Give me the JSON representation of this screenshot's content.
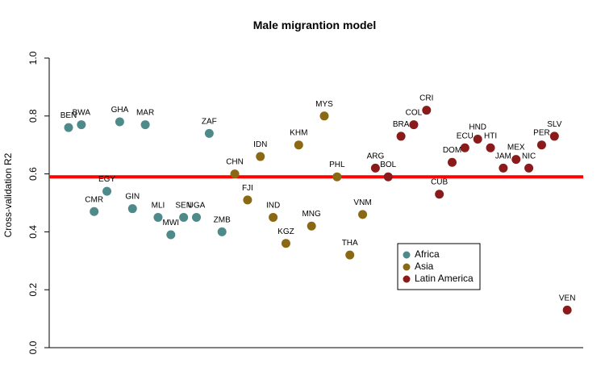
{
  "chart_data": {
    "type": "scatter",
    "title": "Male migrantion model",
    "ylabel": "Cross-validation R2",
    "xlabel": "",
    "ylim": [
      0.0,
      1.0
    ],
    "yticks": [
      "0.0",
      "0.2",
      "0.4",
      "0.6",
      "0.8",
      "1.0"
    ],
    "reference_line": {
      "y": 0.59,
      "color": "#ff0000"
    },
    "legend": {
      "position": "bottom-right",
      "entries": [
        {
          "name": "Africa",
          "color": "#4f8a8b"
        },
        {
          "name": "Asia",
          "color": "#8b6914"
        },
        {
          "name": "Latin America",
          "color": "#8b1a1a"
        }
      ]
    },
    "points": [
      {
        "label": "BEN",
        "x": 1,
        "y": 0.76,
        "group": "Africa"
      },
      {
        "label": "BWA",
        "x": 2,
        "y": 0.77,
        "group": "Africa"
      },
      {
        "label": "CMR",
        "x": 3,
        "y": 0.47,
        "group": "Africa"
      },
      {
        "label": "EGY",
        "x": 4,
        "y": 0.54,
        "group": "Africa"
      },
      {
        "label": "GHA",
        "x": 5,
        "y": 0.78,
        "group": "Africa"
      },
      {
        "label": "GIN",
        "x": 6,
        "y": 0.48,
        "group": "Africa"
      },
      {
        "label": "MAR",
        "x": 7,
        "y": 0.77,
        "group": "Africa"
      },
      {
        "label": "MLI",
        "x": 8,
        "y": 0.45,
        "group": "Africa"
      },
      {
        "label": "MWI",
        "x": 9,
        "y": 0.39,
        "group": "Africa"
      },
      {
        "label": "SEN",
        "x": 10,
        "y": 0.45,
        "group": "Africa"
      },
      {
        "label": "UGA",
        "x": 11,
        "y": 0.45,
        "group": "Africa"
      },
      {
        "label": "ZAF",
        "x": 12,
        "y": 0.74,
        "group": "Africa"
      },
      {
        "label": "ZMB",
        "x": 13,
        "y": 0.4,
        "group": "Africa"
      },
      {
        "label": "CHN",
        "x": 14,
        "y": 0.6,
        "group": "Asia"
      },
      {
        "label": "FJI",
        "x": 15,
        "y": 0.51,
        "group": "Asia"
      },
      {
        "label": "IDN",
        "x": 16,
        "y": 0.66,
        "group": "Asia"
      },
      {
        "label": "IND",
        "x": 17,
        "y": 0.45,
        "group": "Asia"
      },
      {
        "label": "KGZ",
        "x": 18,
        "y": 0.36,
        "group": "Asia"
      },
      {
        "label": "KHM",
        "x": 19,
        "y": 0.7,
        "group": "Asia"
      },
      {
        "label": "MNG",
        "x": 20,
        "y": 0.42,
        "group": "Asia"
      },
      {
        "label": "MYS",
        "x": 21,
        "y": 0.8,
        "group": "Asia"
      },
      {
        "label": "PHL",
        "x": 22,
        "y": 0.59,
        "group": "Asia"
      },
      {
        "label": "THA",
        "x": 23,
        "y": 0.32,
        "group": "Asia"
      },
      {
        "label": "VNM",
        "x": 24,
        "y": 0.46,
        "group": "Asia"
      },
      {
        "label": "ARG",
        "x": 25,
        "y": 0.62,
        "group": "Latin America"
      },
      {
        "label": "BOL",
        "x": 26,
        "y": 0.59,
        "group": "Latin America"
      },
      {
        "label": "BRA",
        "x": 27,
        "y": 0.73,
        "group": "Latin America"
      },
      {
        "label": "COL",
        "x": 28,
        "y": 0.77,
        "group": "Latin America"
      },
      {
        "label": "CRI",
        "x": 29,
        "y": 0.82,
        "group": "Latin America"
      },
      {
        "label": "CUB",
        "x": 30,
        "y": 0.53,
        "group": "Latin America"
      },
      {
        "label": "DOM",
        "x": 31,
        "y": 0.64,
        "group": "Latin America"
      },
      {
        "label": "ECU",
        "x": 32,
        "y": 0.69,
        "group": "Latin America"
      },
      {
        "label": "HND",
        "x": 33,
        "y": 0.72,
        "group": "Latin America"
      },
      {
        "label": "HTI",
        "x": 34,
        "y": 0.69,
        "group": "Latin America"
      },
      {
        "label": "JAM",
        "x": 35,
        "y": 0.62,
        "group": "Latin America"
      },
      {
        "label": "MEX",
        "x": 36,
        "y": 0.65,
        "group": "Latin America"
      },
      {
        "label": "NIC",
        "x": 37,
        "y": 0.62,
        "group": "Latin America"
      },
      {
        "label": "PER",
        "x": 38,
        "y": 0.7,
        "group": "Latin America"
      },
      {
        "label": "SLV",
        "x": 39,
        "y": 0.73,
        "group": "Latin America"
      },
      {
        "label": "VEN",
        "x": 40,
        "y": 0.13,
        "group": "Latin America"
      }
    ]
  }
}
